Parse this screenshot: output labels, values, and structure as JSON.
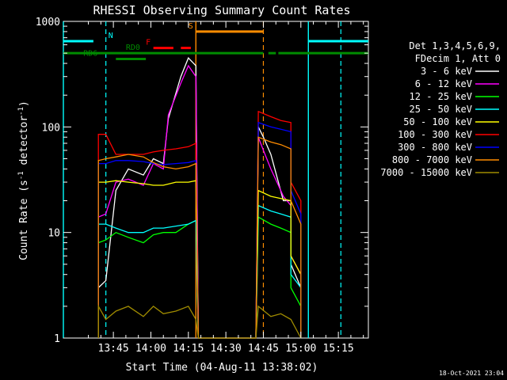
{
  "chart_data": {
    "type": "line",
    "title": "RHESSI Observing Summary Count Rates",
    "xlabel": "Start Time (04-Aug-11 13:38:02)",
    "ylabel": "Count Rate (s",
    "ylabel_sup": "-1",
    "ylabel_mid": " detector",
    "ylabel_tail": ")",
    "xlim": [
      -20,
      102
    ],
    "ylim": [
      1,
      1000
    ],
    "yscale": "log",
    "grid": false,
    "legend_position": "right",
    "x_ticks": [
      {
        "v": 0,
        "label": "13:45"
      },
      {
        "v": 15,
        "label": "14:00"
      },
      {
        "v": 30,
        "label": "14:15"
      },
      {
        "v": 45,
        "label": "14:30"
      },
      {
        "v": 60,
        "label": "14:45"
      },
      {
        "v": 75,
        "label": "15:00"
      },
      {
        "v": 90,
        "label": "15:15"
      }
    ],
    "y_ticks": [
      {
        "v": 1,
        "label": "1"
      },
      {
        "v": 10,
        "label": "10"
      },
      {
        "v": 100,
        "label": "100"
      },
      {
        "v": 1000,
        "label": "1000"
      }
    ],
    "legend_header": [
      "Det 1,3,4,5,6,9,",
      "FDecim 1, Att 0"
    ],
    "timestamp": "18-Oct-2021 23:04",
    "series": [
      {
        "name": "3 - 6 keV",
        "color": "#ffffff",
        "points": [
          [
            -6,
            1
          ],
          [
            -6,
            3
          ],
          [
            -3,
            3.5
          ],
          [
            1,
            25
          ],
          [
            6,
            40
          ],
          [
            12,
            35
          ],
          [
            16,
            50
          ],
          [
            20,
            45
          ],
          [
            22,
            120
          ],
          [
            27,
            300
          ],
          [
            30,
            450
          ],
          [
            33,
            380
          ],
          [
            34,
            1
          ],
          [
            57,
            1
          ],
          [
            58,
            100
          ],
          [
            60,
            80
          ],
          [
            63,
            55
          ],
          [
            66,
            30
          ],
          [
            68,
            20
          ],
          [
            71,
            20
          ],
          [
            71,
            5
          ],
          [
            75,
            3
          ],
          [
            75,
            1
          ]
        ]
      },
      {
        "name": "6 - 12 keV",
        "color": "#ff00ff",
        "points": [
          [
            -6,
            1
          ],
          [
            -6,
            14
          ],
          [
            -3,
            15
          ],
          [
            1,
            30
          ],
          [
            6,
            32
          ],
          [
            12,
            28
          ],
          [
            16,
            45
          ],
          [
            20,
            40
          ],
          [
            22,
            130
          ],
          [
            27,
            260
          ],
          [
            30,
            380
          ],
          [
            33,
            300
          ],
          [
            34,
            1
          ],
          [
            57,
            1
          ],
          [
            58,
            80
          ],
          [
            60,
            60
          ],
          [
            63,
            40
          ],
          [
            66,
            28
          ],
          [
            68,
            22
          ],
          [
            71,
            18
          ],
          [
            71,
            6
          ],
          [
            75,
            4
          ],
          [
            75,
            1
          ]
        ]
      },
      {
        "name": "12 - 25 keV",
        "color": "#00ff00",
        "points": [
          [
            -6,
            1
          ],
          [
            -6,
            8
          ],
          [
            -3,
            8.5
          ],
          [
            1,
            10
          ],
          [
            6,
            9
          ],
          [
            12,
            8
          ],
          [
            16,
            9.5
          ],
          [
            20,
            10
          ],
          [
            25,
            10
          ],
          [
            30,
            12
          ],
          [
            33,
            13
          ],
          [
            34,
            1
          ],
          [
            57,
            1
          ],
          [
            58,
            14
          ],
          [
            63,
            12
          ],
          [
            67,
            11
          ],
          [
            71,
            10
          ],
          [
            71,
            3
          ],
          [
            75,
            2
          ],
          [
            75,
            1
          ]
        ]
      },
      {
        "name": "25 - 50 keV",
        "color": "#00ffff",
        "points": [
          [
            -6,
            1
          ],
          [
            -6,
            12
          ],
          [
            -3,
            12
          ],
          [
            1,
            11
          ],
          [
            6,
            10
          ],
          [
            12,
            10
          ],
          [
            16,
            11
          ],
          [
            20,
            11
          ],
          [
            25,
            11.5
          ],
          [
            30,
            12
          ],
          [
            33,
            13
          ],
          [
            34,
            1
          ],
          [
            57,
            1
          ],
          [
            58,
            18
          ],
          [
            63,
            16
          ],
          [
            67,
            15
          ],
          [
            71,
            14
          ],
          [
            71,
            4
          ],
          [
            75,
            3
          ],
          [
            75,
            1
          ]
        ]
      },
      {
        "name": "50 - 100 keV",
        "color": "#ffff00",
        "points": [
          [
            -6,
            1
          ],
          [
            -6,
            30
          ],
          [
            -3,
            30
          ],
          [
            1,
            31
          ],
          [
            6,
            30
          ],
          [
            12,
            29
          ],
          [
            16,
            28
          ],
          [
            20,
            28
          ],
          [
            25,
            30
          ],
          [
            30,
            30
          ],
          [
            33,
            31
          ],
          [
            34,
            1
          ],
          [
            57,
            1
          ],
          [
            58,
            25
          ],
          [
            63,
            22
          ],
          [
            67,
            21
          ],
          [
            71,
            20
          ],
          [
            71,
            6
          ],
          [
            75,
            4
          ],
          [
            75,
            1
          ]
        ]
      },
      {
        "name": "100 - 300 keV",
        "color": "#ff0000",
        "points": [
          [
            -6,
            1
          ],
          [
            -6,
            85
          ],
          [
            -3,
            85
          ],
          [
            1,
            55
          ],
          [
            6,
            55
          ],
          [
            12,
            55
          ],
          [
            16,
            58
          ],
          [
            20,
            60
          ],
          [
            25,
            62
          ],
          [
            30,
            65
          ],
          [
            33,
            70
          ],
          [
            34,
            1
          ],
          [
            57,
            1
          ],
          [
            58,
            140
          ],
          [
            63,
            125
          ],
          [
            67,
            115
          ],
          [
            71,
            110
          ],
          [
            71,
            30
          ],
          [
            75,
            20
          ],
          [
            75,
            1
          ]
        ]
      },
      {
        "name": "300 - 800 keV",
        "color": "#0000ff",
        "points": [
          [
            -6,
            1
          ],
          [
            -6,
            45
          ],
          [
            -3,
            45
          ],
          [
            1,
            48
          ],
          [
            6,
            48
          ],
          [
            12,
            47
          ],
          [
            16,
            45
          ],
          [
            20,
            44
          ],
          [
            25,
            45
          ],
          [
            30,
            46
          ],
          [
            33,
            48
          ],
          [
            34,
            1
          ],
          [
            57,
            1
          ],
          [
            58,
            110
          ],
          [
            63,
            100
          ],
          [
            67,
            95
          ],
          [
            71,
            90
          ],
          [
            71,
            25
          ],
          [
            75,
            15
          ],
          [
            75,
            1
          ]
        ]
      },
      {
        "name": "800 - 7000 keV",
        "color": "#ff8c00",
        "points": [
          [
            -6,
            1
          ],
          [
            -6,
            48
          ],
          [
            -3,
            50
          ],
          [
            1,
            52
          ],
          [
            6,
            55
          ],
          [
            12,
            52
          ],
          [
            16,
            46
          ],
          [
            20,
            42
          ],
          [
            25,
            40
          ],
          [
            30,
            42
          ],
          [
            33,
            45
          ],
          [
            34,
            1
          ],
          [
            57,
            1
          ],
          [
            58,
            80
          ],
          [
            63,
            72
          ],
          [
            67,
            68
          ],
          [
            71,
            62
          ],
          [
            71,
            20
          ],
          [
            75,
            12
          ],
          [
            75,
            1
          ]
        ]
      },
      {
        "name": "7000 - 15000 keV",
        "color": "#a08c00",
        "points": [
          [
            -6,
            1
          ],
          [
            -6,
            2
          ],
          [
            -3,
            1.5
          ],
          [
            1,
            1.8
          ],
          [
            6,
            2
          ],
          [
            12,
            1.6
          ],
          [
            16,
            2
          ],
          [
            20,
            1.7
          ],
          [
            25,
            1.8
          ],
          [
            30,
            2
          ],
          [
            33,
            1.5
          ],
          [
            34,
            1
          ],
          [
            57,
            1
          ],
          [
            58,
            2
          ],
          [
            63,
            1.6
          ],
          [
            67,
            1.7
          ],
          [
            71,
            1.5
          ],
          [
            75,
            1
          ]
        ]
      }
    ],
    "flag_bars": [
      {
        "label": "",
        "color": "#00ffff",
        "y": 650,
        "segments": [
          [
            -20,
            -8
          ],
          [
            78,
            102
          ]
        ]
      },
      {
        "label": "N",
        "color": "#00ffff",
        "y": 650,
        "label_x": -2,
        "segments": []
      },
      {
        "label": "F",
        "color": "#ff0000",
        "y": 560,
        "label_x": 13,
        "segments": [
          [
            16,
            24
          ],
          [
            27,
            31
          ]
        ]
      },
      {
        "label": "S",
        "color": "#ff8c00",
        "y": 800,
        "label_x": 30,
        "segments": [
          [
            33,
            60
          ]
        ]
      },
      {
        "label": "RD0",
        "color": "#008c00",
        "y": 500,
        "label_x": 5,
        "segments": [
          [
            -20,
            60
          ],
          [
            62,
            65
          ],
          [
            66,
            102
          ]
        ]
      },
      {
        "label": "RD6",
        "color": "#008c00",
        "y": 440,
        "label_x": -12,
        "segments": [
          [
            1,
            13
          ]
        ]
      }
    ],
    "vlines": [
      {
        "x": -3,
        "color": "#00ffff"
      },
      {
        "x": 60,
        "color": "#ff8c00"
      },
      {
        "x": 91,
        "color": "#00ffff"
      }
    ],
    "vlines_solid": [
      {
        "x": 33,
        "color": "#ff8c00"
      },
      {
        "x": 78,
        "color": "#00ffff"
      },
      {
        "x": -20,
        "color": "#00ffff"
      }
    ]
  }
}
